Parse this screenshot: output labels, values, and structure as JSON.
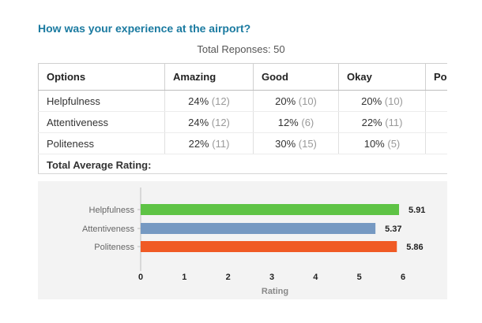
{
  "question": "How was your experience at the airport?",
  "total_responses": "Total Reponses: 50",
  "table": {
    "headers": [
      "Options",
      "Amazing",
      "Good",
      "Okay",
      "Po"
    ],
    "rows": [
      {
        "label": "Helpfulness",
        "cells": [
          [
            "24%",
            "(12)"
          ],
          [
            "20%",
            "(10)"
          ],
          [
            "20%",
            "(10)"
          ]
        ]
      },
      {
        "label": "Attentiveness",
        "cells": [
          [
            "24%",
            "(12)"
          ],
          [
            "12%",
            "(6)"
          ],
          [
            "22%",
            "(11)"
          ]
        ]
      },
      {
        "label": "Politeness",
        "cells": [
          [
            "22%",
            "(11)"
          ],
          [
            "30%",
            "(15)"
          ],
          [
            "10%",
            "(5)"
          ]
        ]
      }
    ],
    "average_label": "Total Average Rating:"
  },
  "chart_data": {
    "type": "bar",
    "orientation": "horizontal",
    "categories": [
      "Helpfulness",
      "Attentiveness",
      "Politeness"
    ],
    "values": [
      5.91,
      5.37,
      5.86
    ],
    "value_labels": [
      "5.91",
      "5.37",
      "5.86"
    ],
    "colors": [
      "#5ec345",
      "#7699c2",
      "#f05a24"
    ],
    "xlabel": "Rating",
    "xlim": [
      0,
      6
    ],
    "xticks": [
      "0",
      "1",
      "2",
      "3",
      "4",
      "5",
      "6"
    ],
    "grid": false
  }
}
